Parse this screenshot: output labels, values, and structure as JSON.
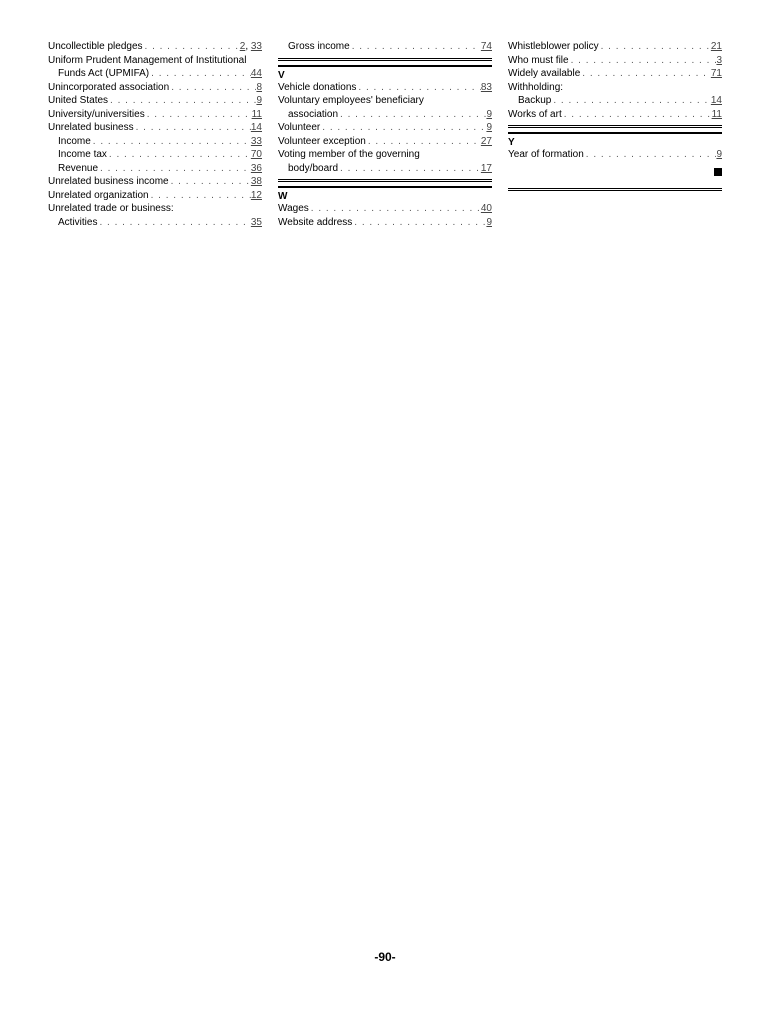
{
  "footer": "-90-",
  "dotFill": ". . . . . . . . . . . . . . . . . . . . . . . . . . . . . . . . . . . . . . . . . . . . . . . . . .",
  "col1": {
    "entries": [
      {
        "label": "Uncollectible pledges",
        "pages": [
          "2",
          "33"
        ]
      },
      {
        "label": "Uniform Prudent Management of Institutional",
        "wrap": true
      },
      {
        "label": "Funds Act (UPMIFA)",
        "pages": [
          "44"
        ],
        "indent": 1,
        "cont": true
      },
      {
        "label": "Unincorporated association",
        "pages": [
          "8"
        ]
      },
      {
        "label": "United States",
        "pages": [
          "9"
        ]
      },
      {
        "label": "University/universities",
        "pages": [
          "11"
        ]
      },
      {
        "label": "Unrelated business",
        "pages": [
          "14"
        ]
      },
      {
        "label": "Income",
        "pages": [
          "33"
        ],
        "indent": 1
      },
      {
        "label": "Income tax",
        "pages": [
          "70"
        ],
        "indent": 1
      },
      {
        "label": "Revenue",
        "pages": [
          "36"
        ],
        "indent": 1
      },
      {
        "label": "Unrelated business income",
        "pages": [
          "38"
        ]
      },
      {
        "label": "Unrelated organization",
        "pages": [
          "12"
        ]
      },
      {
        "label": "Unrelated trade or business:",
        "header": true
      },
      {
        "label": "Activities",
        "pages": [
          "35"
        ],
        "indent": 1
      }
    ]
  },
  "col2": {
    "leading": [
      {
        "label": "Gross income",
        "pages": [
          "74"
        ],
        "indent": 1
      }
    ],
    "sections": [
      {
        "letter": "V",
        "entries": [
          {
            "label": "Vehicle donations",
            "pages": [
              "83"
            ]
          },
          {
            "label": "Voluntary employees' beneficiary",
            "wrap": true
          },
          {
            "label": "association",
            "pages": [
              "9"
            ],
            "indent": 1,
            "cont": true
          },
          {
            "label": "Volunteer",
            "pages": [
              "9"
            ]
          },
          {
            "label": "Volunteer exception",
            "pages": [
              "27"
            ]
          },
          {
            "label": "Voting member of the governing",
            "wrap": true
          },
          {
            "label": "body/board",
            "pages": [
              "17"
            ],
            "indent": 1,
            "cont": true
          }
        ]
      },
      {
        "letter": "W",
        "entries": [
          {
            "label": "Wages",
            "pages": [
              "40"
            ]
          },
          {
            "label": "Website address",
            "pages": [
              "9"
            ]
          }
        ]
      }
    ]
  },
  "col3": {
    "leading": [
      {
        "label": "Whistleblower policy",
        "pages": [
          "21"
        ]
      },
      {
        "label": "Who must file",
        "pages": [
          "3"
        ]
      },
      {
        "label": "Widely available",
        "pages": [
          "71"
        ]
      },
      {
        "label": "Withholding:",
        "header": true
      },
      {
        "label": "Backup",
        "pages": [
          "14"
        ],
        "indent": 1
      },
      {
        "label": "Works of art",
        "pages": [
          "11"
        ]
      }
    ],
    "sections": [
      {
        "letter": "Y",
        "entries": [
          {
            "label": "Year of formation",
            "pages": [
              "9"
            ]
          }
        ]
      }
    ]
  }
}
